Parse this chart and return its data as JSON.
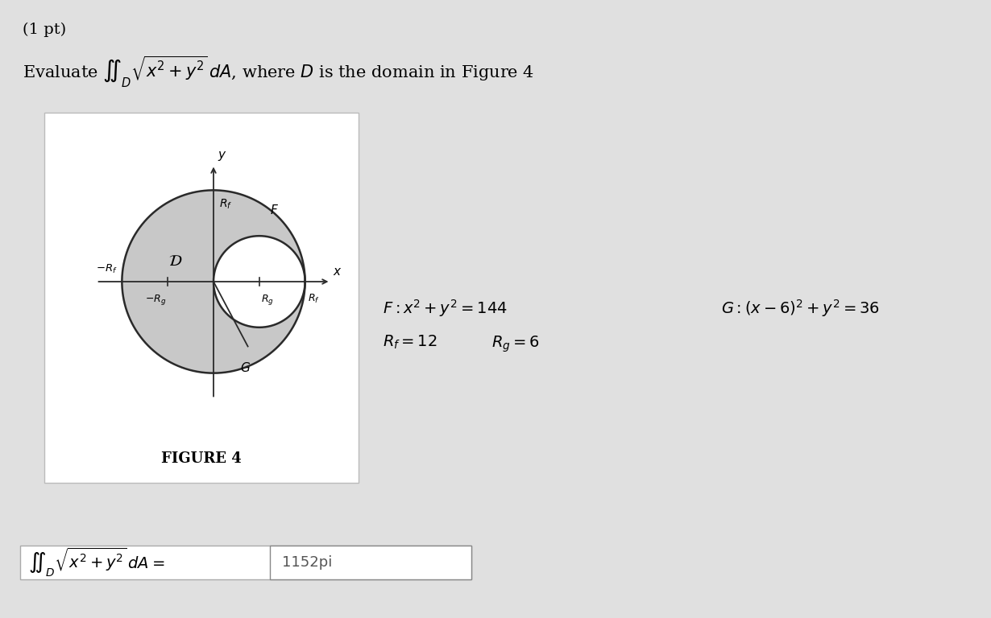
{
  "bg_color": "#e0e0e0",
  "fig_bg_color": "#e0e0e0",
  "white_color": "#ffffff",
  "title_text": "(1 pt)",
  "problem_text": "Evaluate $\\iint_D \\sqrt{x^2 + y^2}\\, dA$, where $\\mathit{D}$ is the domain in Figure 4",
  "figure_title": "FIGURE 4",
  "answer_value": "1152pi",
  "Rf": 12,
  "Rg": 6,
  "Gcx": 6,
  "Gcy": 0,
  "gray_color": "#c8c8c8",
  "circle_edge_color": "#2a2a2a",
  "axis_color": "#2a2a2a",
  "text_color": "#000000"
}
